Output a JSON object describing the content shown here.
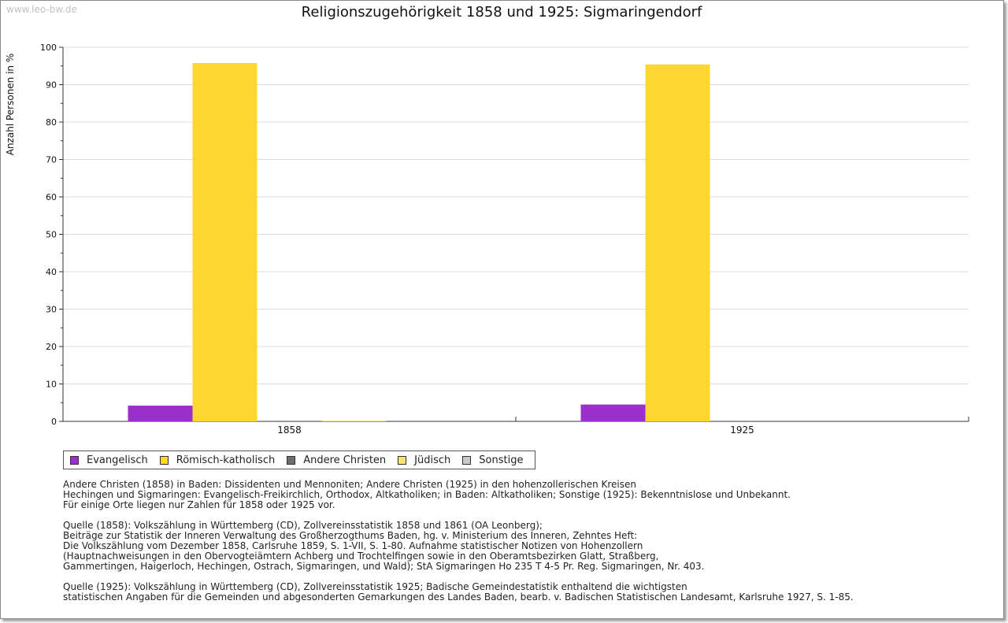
{
  "watermark": "www.leo-bw.de",
  "chart_data": {
    "type": "bar",
    "title": "Religionszugehörigkeit 1858 und 1925: Sigmaringendorf",
    "xlabel": "",
    "ylabel": "Anzahl Personen in %",
    "ylim": [
      0,
      100
    ],
    "yticks": [
      0,
      10,
      20,
      30,
      40,
      50,
      60,
      70,
      80,
      90,
      100
    ],
    "grid": true,
    "legend_position": "bottom-left",
    "categories": [
      "1858",
      "1925"
    ],
    "series": [
      {
        "name": "Evangelisch",
        "color": "#9a2fcb",
        "values": [
          4.2,
          4.5
        ]
      },
      {
        "name": "Römisch-katholisch",
        "color": "#fdd72f",
        "values": [
          95.8,
          95.4
        ]
      },
      {
        "name": "Andere Christen",
        "color": "#6e6e6e",
        "values": [
          0,
          0
        ]
      },
      {
        "name": "Jüdisch",
        "color": "#fde17a",
        "values": [
          0.2,
          0
        ]
      },
      {
        "name": "Sonstige",
        "color": "#c8c8c8",
        "values": [
          0,
          0
        ]
      }
    ]
  },
  "notes": {
    "definitions": [
      "Andere Christen (1858) in Baden: Dissidenten und Mennoniten; Andere Christen (1925) in den hohenzollerischen Kreisen",
      "Hechingen und Sigmaringen: Evangelisch-Freikirchlich, Orthodox, Altkatholiken; in Baden: Altkatholiken; Sonstige (1925): Bekenntnislose und Unbekannt.",
      "Für einige Orte liegen nur Zahlen für 1858 oder 1925 vor."
    ],
    "source_1858": [
      "Quelle (1858): Volkszählung in Württemberg (CD), Zollvereinsstatistik 1858 und 1861 (OA Leonberg);",
      "Beiträge zur Statistik der Inneren Verwaltung des Großherzogthums Baden, hg. v. Ministerium des Inneren, Zehntes Heft:",
      "Die Volkszählung vom Dezember 1858, Carlsruhe 1859, S. 1-VII, S. 1-80. Aufnahme statistischer Notizen von Hohenzollern",
      "(Hauptnachweisungen in den Obervogteiämtern Achberg und Trochtelfingen sowie in den Oberamtsbezirken Glatt, Straßberg,",
      "Gammertingen, Haigerloch, Hechingen, Ostrach, Sigmaringen, und Wald); StA Sigmaringen Ho 235 T 4-5 Pr. Reg. Sigmaringen, Nr. 403."
    ],
    "source_1925": [
      "Quelle (1925): Volkszählung in Württemberg (CD), Zollvereinsstatistik 1925; Badische Gemeindestatistik enthaltend die wichtigsten",
      "statistischen Angaben für die Gemeinden und abgesonderten Gemarkungen des Landes Baden, bearb. v. Badischen Statistischen Landesamt, Karlsruhe 1927, S. 1-85."
    ]
  }
}
